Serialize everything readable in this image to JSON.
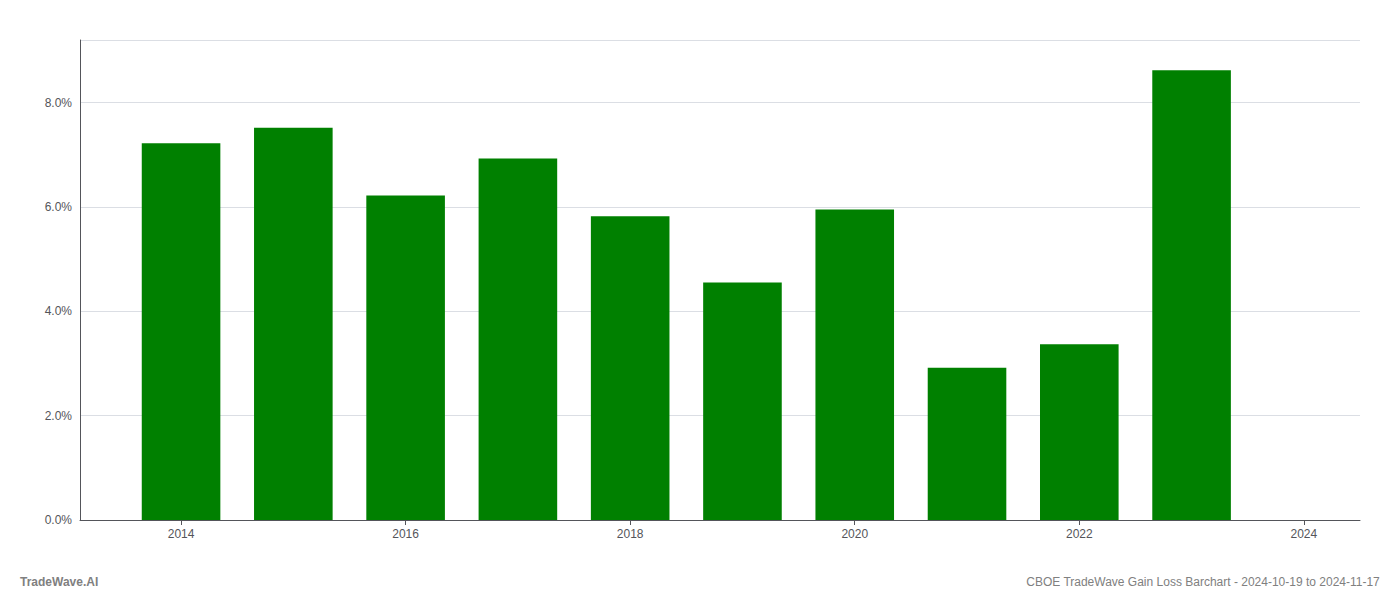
{
  "chart_data": {
    "type": "bar",
    "x": [
      2014,
      2015,
      2016,
      2017,
      2018,
      2019,
      2020,
      2021,
      2022,
      2023
    ],
    "values": [
      0.0722,
      0.0752,
      0.0622,
      0.0693,
      0.0582,
      0.0455,
      0.0595,
      0.0292,
      0.0337,
      0.0862
    ],
    "color": "#008000",
    "xlim": [
      2013.1,
      2024.5
    ],
    "xticks": [
      2014,
      2016,
      2018,
      2020,
      2022,
      2024
    ],
    "ylim": [
      0.0,
      0.092
    ],
    "yticks": [
      {
        "value": 0.0,
        "label": "0.0%"
      },
      {
        "value": 0.02,
        "label": "2.0%"
      },
      {
        "value": 0.04,
        "label": "4.0%"
      },
      {
        "value": 0.06,
        "label": "6.0%"
      },
      {
        "value": 0.08,
        "label": "8.0%"
      }
    ],
    "grid": true,
    "annotations": [
      "TradeWave.AI",
      "CBOE TradeWave Gain Loss Barchart - 2024-10-19 to 2024-11-17"
    ]
  }
}
